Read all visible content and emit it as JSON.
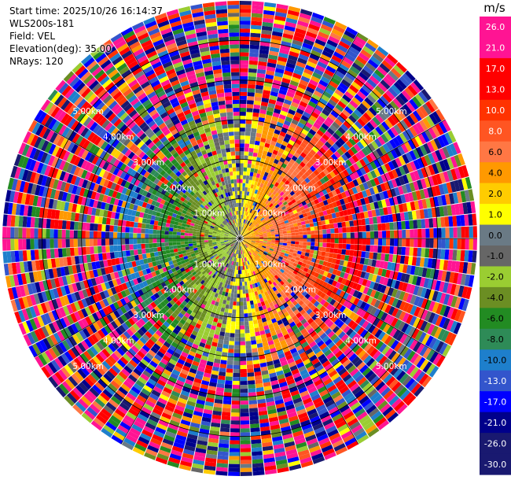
{
  "info": {
    "start_time": "Start time: 2025/10/26 16:14:37",
    "station": "WLS200s-181",
    "field": "Field: VEL",
    "elevation": "Elevation(deg): 35.00",
    "nrays": "NRays: 120"
  },
  "chart_data": {
    "type": "ppi_scan",
    "field": "VEL",
    "units": "m/s",
    "elevation_deg": 35.0,
    "n_rays": 120,
    "max_range_km": 6.0,
    "range_rings_km": [
      1,
      2,
      3,
      4,
      5
    ],
    "range_labels": [
      "1.00km",
      "2.00km",
      "3.00km",
      "4.00km",
      "5.00km"
    ],
    "colorbar": {
      "labels": [
        "26.0",
        "21.0",
        "17.0",
        "13.0",
        "10.0",
        "8.0",
        "6.0",
        "4.0",
        "2.0",
        "1.0",
        "0.0",
        "-1.0",
        "-2.0",
        "-4.0",
        "-6.0",
        "-8.0",
        "-10.0",
        "-13.0",
        "-17.0",
        "-21.0",
        "-26.0",
        "-30.0"
      ],
      "colors": [
        "#ff1493",
        "#ff1493",
        "#ff0000",
        "#ff0000",
        "#ff3300",
        "#ff5522",
        "#ff7744",
        "#ff9900",
        "#ffcc00",
        "#ffff00",
        "#6a7a85",
        "#666666",
        "#9acd32",
        "#6b8e23",
        "#228b22",
        "#2e8b57",
        "#1e7fcc",
        "#3355cc",
        "#0000ff",
        "#00008b",
        "#191970",
        "#191970"
      ]
    },
    "pattern": "approaching (negative, blue/green) velocities toward the west, receding (positive, yellow/red) toward the east within ~3 km; noisy random values at larger ranges"
  }
}
